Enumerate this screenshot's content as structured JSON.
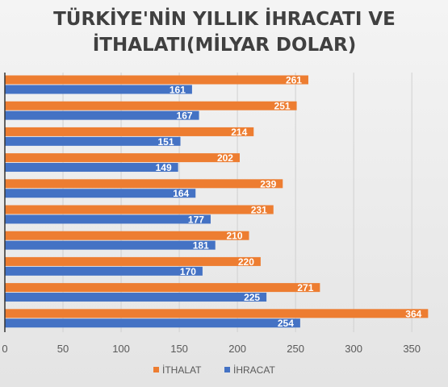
{
  "chart_data": {
    "type": "bar",
    "orientation": "horizontal",
    "title": "TÜRKİYE'NİN YILLIK İHRACATI VE İTHALATI(MİLYAR DOLAR)",
    "title_lines": [
      "TÜRKİYE'NİN YILLIK İHRACATI VE",
      "İTHALATI(MİLYAR DOLAR)"
    ],
    "xlabel": "",
    "ylabel": "",
    "xlim": [
      0,
      365
    ],
    "x_ticks": [
      "0",
      "50",
      "100",
      "150",
      "200",
      "250",
      "300",
      "350"
    ],
    "grid": true,
    "legend_position": "bottom",
    "series": [
      {
        "name": "İTHALAT",
        "color": "#ed7d31",
        "values": [
          261,
          251,
          214,
          202,
          239,
          231,
          210,
          220,
          271,
          364
        ],
        "labels": [
          "261",
          "251",
          "214",
          "202",
          "239",
          "231",
          "210",
          "220",
          "271",
          "364"
        ]
      },
      {
        "name": "İHRACAT",
        "color": "#4472c4",
        "values": [
          161,
          167,
          151,
          149,
          164,
          177,
          181,
          170,
          225,
          254
        ],
        "labels": [
          "161",
          "167",
          "151",
          "149",
          "164",
          "177",
          "181",
          "170",
          "225",
          "254"
        ]
      }
    ]
  }
}
